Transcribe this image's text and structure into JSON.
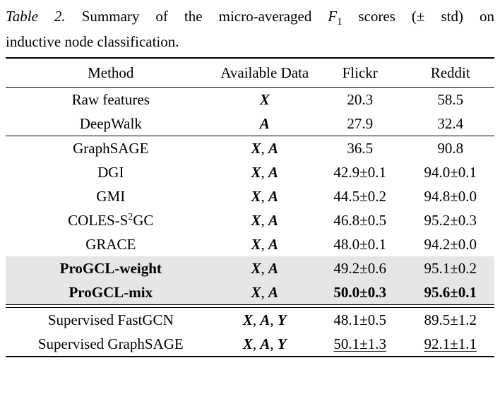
{
  "caption": {
    "line1": {
      "label": "Table 2.",
      "before_math": "Summary of the micro-averaged",
      "math_f": "F",
      "math_sub": "1",
      "after_math": "scores (± std) on"
    },
    "line2": "inductive node classification."
  },
  "table": {
    "headers": [
      "Method",
      "Available Data",
      "Flickr",
      "Reddit"
    ],
    "groups": [
      {
        "name": "shallow-baselines",
        "rows": [
          {
            "method": "Raw features",
            "data": [
              "X"
            ],
            "flickr": "20.3",
            "reddit": "58.5"
          },
          {
            "method": "DeepWalk",
            "data": [
              "A"
            ],
            "flickr": "27.9",
            "reddit": "32.4"
          }
        ]
      },
      {
        "name": "unsupervised-methods",
        "separator_above": "single",
        "rows": [
          {
            "method": "GraphSAGE",
            "data": [
              "X",
              "A"
            ],
            "flickr": "36.5",
            "reddit": "90.8"
          },
          {
            "method": "DGI",
            "data": [
              "X",
              "A"
            ],
            "flickr": "42.9±0.1",
            "reddit": "94.0±0.1"
          },
          {
            "method": "GMI",
            "data": [
              "X",
              "A"
            ],
            "flickr": "44.5±0.2",
            "reddit": "94.8±0.0"
          },
          {
            "method": "COLES-S^2GC",
            "data": [
              "X",
              "A"
            ],
            "flickr": "46.8±0.5",
            "reddit": "95.2±0.3"
          },
          {
            "method": "GRACE",
            "data": [
              "X",
              "A"
            ],
            "flickr": "48.0±0.1",
            "reddit": "94.2±0.0"
          },
          {
            "method": "ProGCL-weight",
            "data": [
              "X",
              "A"
            ],
            "flickr": "49.2±0.6",
            "reddit": "95.1±0.2",
            "highlight": true,
            "bold_method": true
          },
          {
            "method": "ProGCL-mix",
            "data": [
              "X",
              "A"
            ],
            "flickr": "50.0±0.3",
            "reddit": "95.6±0.1",
            "highlight": true,
            "bold_method": true,
            "bold_values": true
          }
        ]
      },
      {
        "name": "supervised-methods",
        "separator_above": "double",
        "rows": [
          {
            "method": "Supervised FastGCN",
            "data": [
              "X",
              "A",
              "Y"
            ],
            "flickr": "48.1±0.5",
            "reddit": "89.5±1.2"
          },
          {
            "method": "Supervised GraphSAGE",
            "data": [
              "X",
              "A",
              "Y"
            ],
            "flickr": "50.1±1.3",
            "reddit": "92.1±1.1",
            "underline_values": true
          }
        ]
      }
    ]
  },
  "colors": {
    "highlight": "#e6e6e6",
    "text": "#000000",
    "background": "#ffffff"
  }
}
